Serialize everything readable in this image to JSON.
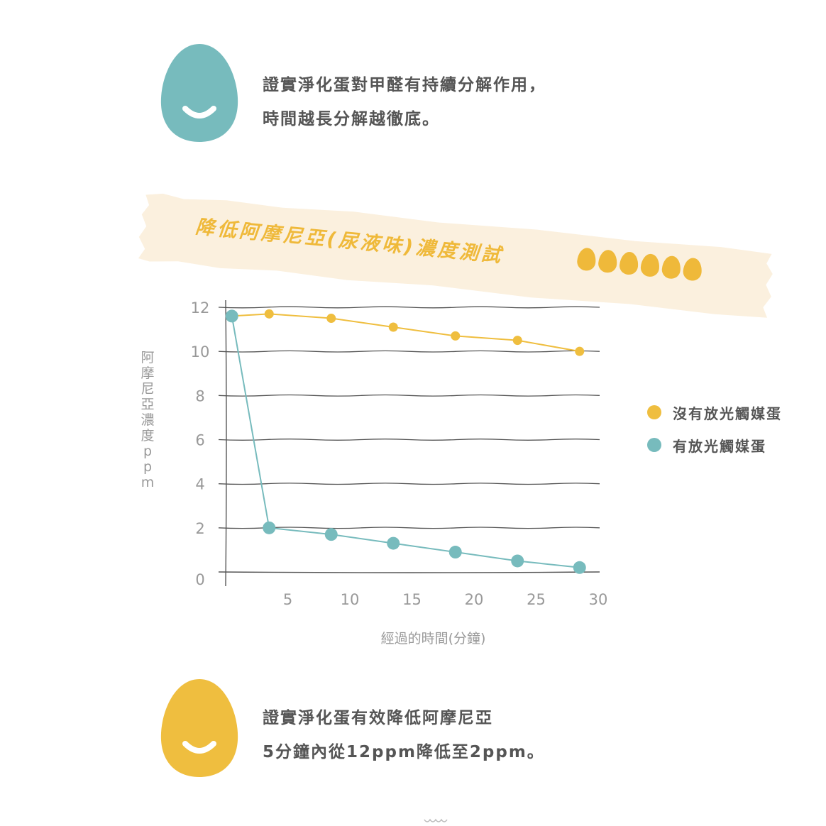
{
  "top_message": {
    "line1": "證實淨化蛋對甲醛有持續分解作用，",
    "line2": "時間越長分解越徹底。"
  },
  "banner": {
    "title": "降低阿摩尼亞(尿液味)濃度測試",
    "egg_count": 6
  },
  "colors": {
    "teal": "#77bbbd",
    "yellow": "#efbe3f",
    "tape": "#fbf0de",
    "grid": "#555555",
    "text": "#555555",
    "muted": "#999999"
  },
  "legend": {
    "items": [
      {
        "label": "沒有放光觸媒蛋",
        "color": "#efbe3f"
      },
      {
        "label": "有放光觸媒蛋",
        "color": "#77bbbd"
      }
    ]
  },
  "bottom_message": {
    "line1": "證實淨化蛋有效降低阿摩尼亞",
    "line2": "5分鐘內從12ppm降低至2ppm。"
  },
  "chart_data": {
    "type": "line",
    "xlabel": "經過的時間(分鐘)",
    "ylabel": "阿摩尼亞濃度ppm",
    "x_ticks": [
      "5",
      "10",
      "15",
      "20",
      "25",
      "30"
    ],
    "y_ticks": [
      "0",
      "2",
      "4",
      "6",
      "8",
      "10",
      "12"
    ],
    "xlim": [
      0,
      30
    ],
    "ylim": [
      0,
      12
    ],
    "grid": true,
    "legend_position": "right",
    "series": [
      {
        "name": "沒有放光觸媒蛋",
        "color": "#efbe3f",
        "points": [
          [
            0.5,
            11.6
          ],
          [
            3.5,
            11.7
          ],
          [
            8.5,
            11.5
          ],
          [
            13.5,
            11.1
          ],
          [
            18.5,
            10.7
          ],
          [
            23.5,
            10.5
          ],
          [
            28.5,
            10.0
          ]
        ]
      },
      {
        "name": "有放光觸媒蛋",
        "color": "#77bbbd",
        "points": [
          [
            0.5,
            11.6
          ],
          [
            3.5,
            2.0
          ],
          [
            8.5,
            1.7
          ],
          [
            13.5,
            1.3
          ],
          [
            18.5,
            0.9
          ],
          [
            23.5,
            0.5
          ],
          [
            28.5,
            0.2
          ]
        ]
      }
    ]
  }
}
